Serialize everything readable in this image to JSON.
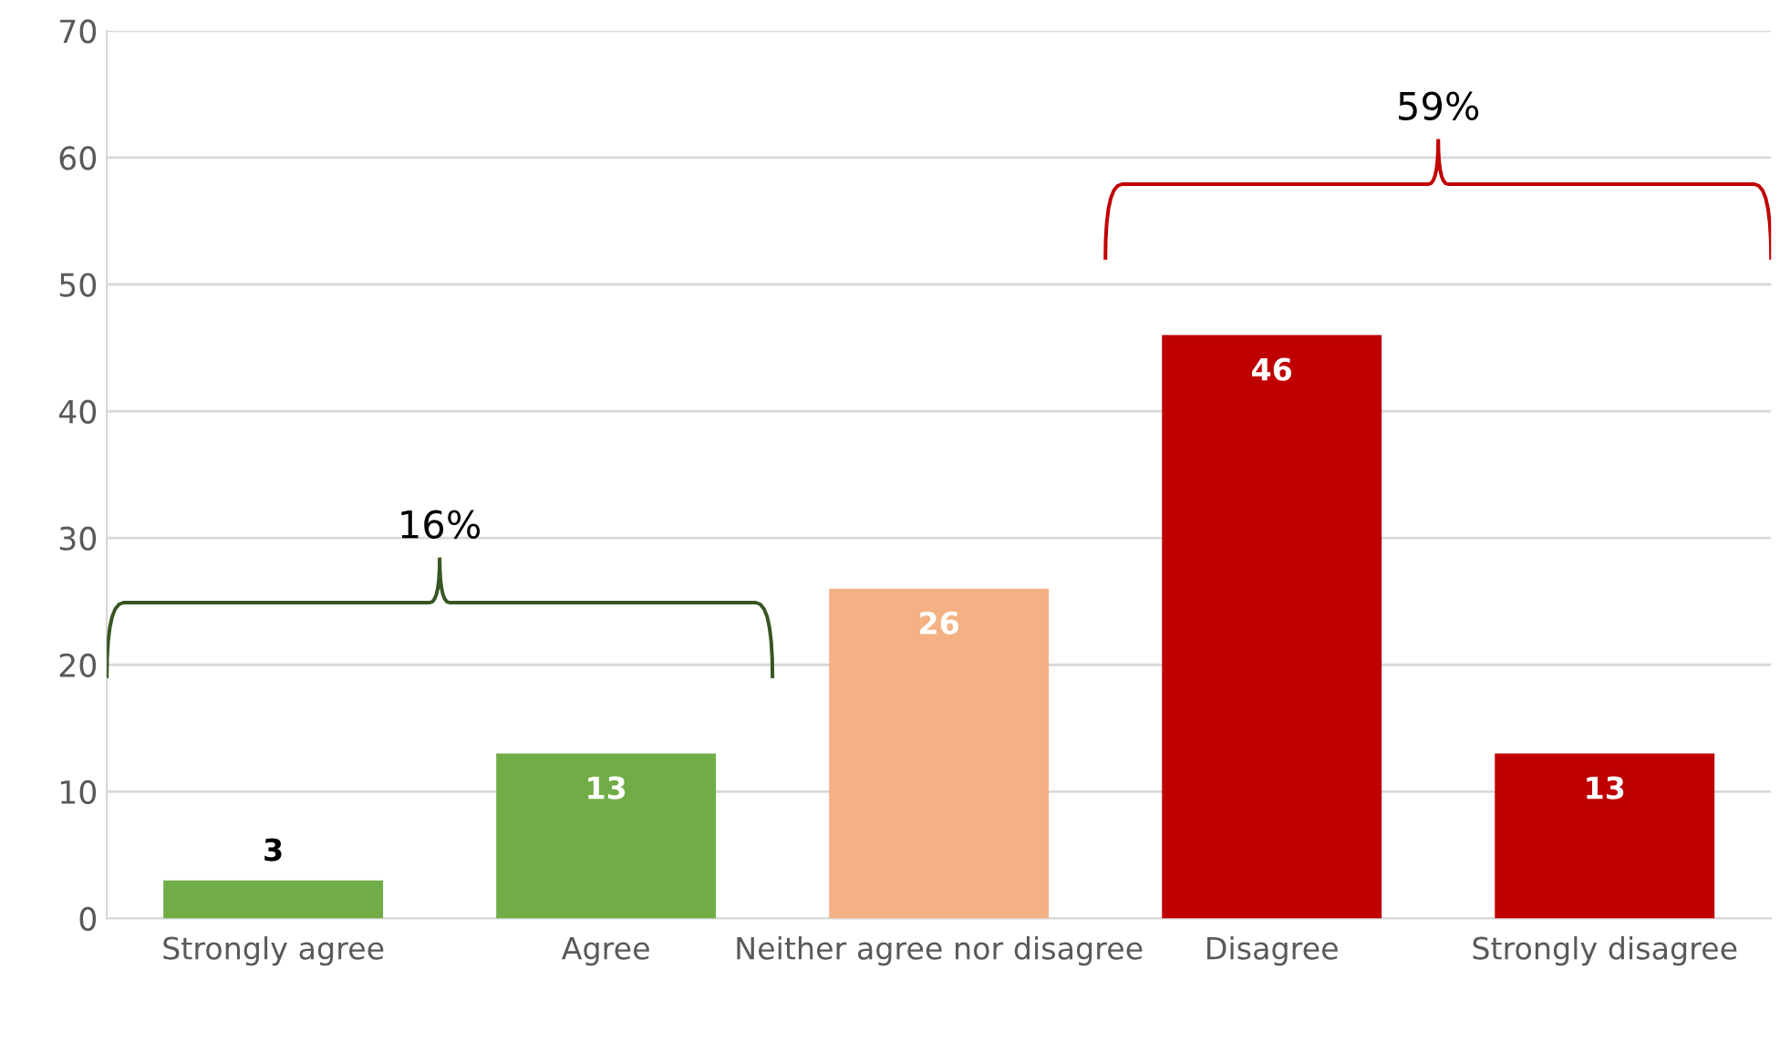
{
  "chart_data": {
    "type": "bar",
    "categories": [
      "Strongly agree",
      "Agree",
      "Neither agree nor disagree",
      "Disagree",
      "Strongly disagree"
    ],
    "values": [
      3,
      13,
      26,
      46,
      13
    ],
    "colors": [
      "#70ad47",
      "#70ad47",
      "#f4b183",
      "#c00000",
      "#c00000"
    ],
    "data_labels": true,
    "ylim": [
      0,
      70
    ],
    "yticks": [
      0,
      10,
      20,
      30,
      40,
      50,
      60,
      70
    ],
    "grid": "y",
    "annotations": [
      "16%",
      "59%"
    ]
  }
}
